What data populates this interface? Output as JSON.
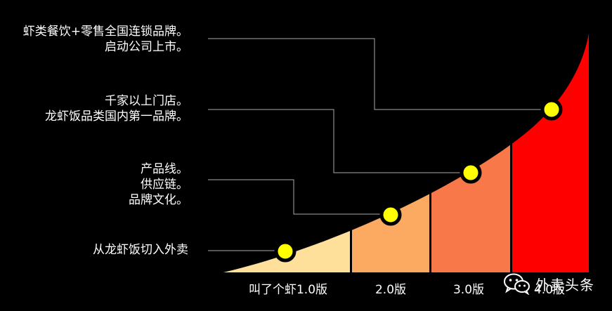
{
  "notes": [
    {
      "lines": [
        "虾类餐饮+零售全国连锁品牌。",
        "启动公司上市。"
      ]
    },
    {
      "lines": [
        "千家以上门店。",
        "龙虾饭品类国内第一品牌。"
      ]
    },
    {
      "lines": [
        "产品线。",
        "供应链。",
        "品牌文化。"
      ]
    },
    {
      "lines": [
        "从龙虾饭切入外卖"
      ]
    }
  ],
  "versions": [
    "叫了个虾1.0版",
    "2.0版",
    "3.0版",
    "4.0版"
  ],
  "watermark": {
    "text": "外卖头条",
    "icon": "wechat-icon"
  },
  "colors": {
    "band1": "#ffe09a",
    "band2": "#fcaa62",
    "band3": "#f8784a",
    "band4": "#ff0000",
    "milestone": "#ffff00",
    "connector": "#aaaaaa"
  }
}
